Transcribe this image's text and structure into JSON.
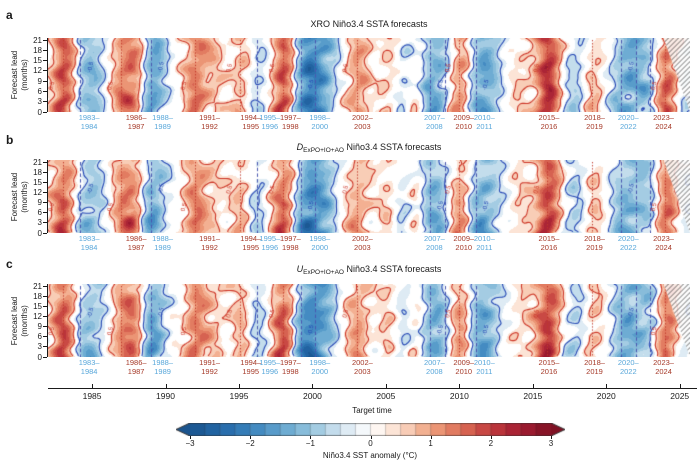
{
  "figure": {
    "background": "#ffffff",
    "x_axis_label": "Target time",
    "x_ticks": [
      1985,
      1990,
      1995,
      2000,
      2005,
      2010,
      2015,
      2020,
      2025
    ],
    "x_range": [
      1982.0,
      2025.7
    ],
    "y_axis_label_line1": "Forecast lead",
    "y_axis_label_line2": "(months)",
    "y_ticks": [
      0,
      3,
      6,
      9,
      12,
      15,
      18,
      21
    ],
    "y_range": [
      0,
      21.6
    ]
  },
  "chart_data": {
    "type": "heatmap",
    "description": "Three Hovmoller-style panels of Niño3.4 SSTA forecasts: shading is forecast Niño3.4 SST anomaly (°C) versus target time (x, 1982-2025) and forecast lead (y, 0-21 months). Solid contours at ±0.5 °C. Vertical dotted red lines mark El Niño peaks, dashed blue lines mark La Niña peaks. Hatching in the top-right marks forecasts beyond available observations.",
    "panels": [
      {
        "letter": "a",
        "title_prefix": "XRO",
        "title_sub": "",
        "title_rest": " Niño3.4 SSTA forecasts",
        "lead_damping": 0.22,
        "noise_seed": 0.3
      },
      {
        "letter": "b",
        "title_prefix": "D",
        "title_sub": "ExPO+IO+AO",
        "title_rest": " Niño3.4 SSTA forecasts",
        "lead_damping": 0.42,
        "noise_seed": 1.9
      },
      {
        "letter": "c",
        "title_prefix": "U",
        "title_sub": "ExPO+IO+AO",
        "title_rest": " Niño3.4 SSTA forecasts",
        "lead_damping": 0.32,
        "noise_seed": 3.7
      }
    ],
    "contour_levels": [
      -0.5,
      0.5
    ],
    "contour_label_positive": "0.5",
    "contour_label_negative": "-0.5",
    "events": [
      {
        "kind": "el_nino",
        "lines": [
          1983.0
        ],
        "label_top": "",
        "label_bottom": "",
        "label_x": 1983.0
      },
      {
        "kind": "la_nina",
        "lines": [
          1984.2
        ],
        "label_top": "1983–",
        "label_bottom": "1984",
        "label_x": 1984.8
      },
      {
        "kind": "el_nino",
        "lines": [
          1987.0
        ],
        "label_top": "1986–",
        "label_bottom": "1987",
        "label_x": 1988.0
      },
      {
        "kind": "la_nina",
        "lines": [
          1989.0
        ],
        "label_top": "1988–",
        "label_bottom": "1989",
        "label_x": 1989.8
      },
      {
        "kind": "el_nino",
        "lines": [
          1992.0
        ],
        "label_top": "1991–",
        "label_bottom": "1992",
        "label_x": 1993.0
      },
      {
        "kind": "el_nino",
        "lines": [
          1995.1
        ],
        "label_top": "1994–",
        "label_bottom": "1995",
        "label_x": 1995.8
      },
      {
        "kind": "la_nina",
        "lines": [
          1996.2
        ],
        "label_top": "1995–",
        "label_bottom": "1996",
        "label_x": 1997.1
      },
      {
        "kind": "el_nino",
        "lines": [
          1998.0
        ],
        "label_top": "1997–",
        "label_bottom": "1998",
        "label_x": 1998.5
      },
      {
        "kind": "la_nina",
        "lines": [
          1999.2,
          2000.2
        ],
        "label_top": "1998–",
        "label_bottom": "2000",
        "label_x": 2000.5
      },
      {
        "kind": "el_nino",
        "lines": [
          2003.0
        ],
        "label_top": "2002–",
        "label_bottom": "2003",
        "label_x": 2003.4
      },
      {
        "kind": "la_nina",
        "lines": [
          2008.0,
          2009.0
        ],
        "label_top": "2007–",
        "label_bottom": "2008",
        "label_x": 2008.3
      },
      {
        "kind": "el_nino",
        "lines": [
          2010.0
        ],
        "label_top": "2009–",
        "label_bottom": "2010",
        "label_x": 2010.3
      },
      {
        "kind": "la_nina",
        "lines": [
          2011.1
        ],
        "label_top": "2010–",
        "label_bottom": "2011",
        "label_x": 2011.7
      },
      {
        "kind": "el_nino",
        "lines": [
          2016.0
        ],
        "label_top": "2015–",
        "label_bottom": "2016",
        "label_x": 2016.1
      },
      {
        "kind": "el_nino",
        "lines": [
          2019.0
        ],
        "label_top": "2018–",
        "label_bottom": "2019",
        "label_x": 2019.2
      },
      {
        "kind": "la_nina",
        "lines": [
          2021.0,
          2022.0,
          2023.0
        ],
        "label_top": "2020–",
        "label_bottom": "2022",
        "label_x": 2021.5
      },
      {
        "kind": "el_nino",
        "lines": [
          2024.0
        ],
        "label_top": "2023–",
        "label_bottom": "2024",
        "label_x": 2023.9
      }
    ],
    "approx_anomaly_peaks": [
      [
        1983.0,
        2.2,
        0.5
      ],
      [
        1984.4,
        -1.0,
        0.6
      ],
      [
        1985.3,
        -0.6,
        0.5
      ],
      [
        1987.1,
        1.5,
        0.55
      ],
      [
        1988.0,
        1.1,
        0.4
      ],
      [
        1989.0,
        -1.8,
        0.55
      ],
      [
        1992.0,
        1.6,
        0.5
      ],
      [
        1993.3,
        0.6,
        0.4
      ],
      [
        1995.1,
        1.0,
        0.45
      ],
      [
        1996.1,
        -0.8,
        0.5
      ],
      [
        1998.0,
        2.3,
        0.5
      ],
      [
        1999.2,
        -1.5,
        0.6
      ],
      [
        2000.2,
        -1.6,
        0.6
      ],
      [
        2001.1,
        -0.6,
        0.4
      ],
      [
        2003.0,
        1.2,
        0.5
      ],
      [
        2005.0,
        0.6,
        0.4
      ],
      [
        2006.2,
        -0.6,
        0.4
      ],
      [
        2007.0,
        0.7,
        0.4
      ],
      [
        2008.0,
        -1.5,
        0.55
      ],
      [
        2009.0,
        -0.6,
        0.4
      ],
      [
        2010.0,
        1.5,
        0.5
      ],
      [
        2011.1,
        -1.4,
        0.5
      ],
      [
        2012.1,
        -1.0,
        0.5
      ],
      [
        2014.1,
        0.5,
        0.45
      ],
      [
        2016.0,
        2.5,
        0.55
      ],
      [
        2017.0,
        -0.5,
        0.4
      ],
      [
        2018.0,
        -0.8,
        0.45
      ],
      [
        2019.0,
        0.8,
        0.45
      ],
      [
        2021.0,
        -1.2,
        0.5
      ],
      [
        2022.0,
        -1.0,
        0.5
      ],
      [
        2023.0,
        -0.9,
        0.45
      ],
      [
        2024.0,
        1.9,
        0.5
      ],
      [
        2025.3,
        -0.5,
        0.4
      ]
    ],
    "hatch_start_year_at_top": 2023.9,
    "colors": {
      "el_nino_label": "#a63a29",
      "la_nina_label": "#58a7da",
      "el_nino_line": "#c0392b",
      "la_nina_line": "#4a57b0",
      "contour_positive": "#cd3526",
      "contour_negative": "#2547b5",
      "axis": "#1a1a1a"
    }
  },
  "colorbar": {
    "label": "Niño3.4 SST anomaly (°C)",
    "ticks": [
      -3,
      -2,
      -1,
      0,
      1,
      2,
      3
    ],
    "range": [
      -3,
      3
    ],
    "segment_step": 0.25,
    "stops": [
      {
        "v": -3.0,
        "c": "#1a548e"
      },
      {
        "v": -2.5,
        "c": "#2468a8"
      },
      {
        "v": -2.0,
        "c": "#3a83bd"
      },
      {
        "v": -1.5,
        "c": "#62a4cf"
      },
      {
        "v": -1.0,
        "c": "#94c4de"
      },
      {
        "v": -0.5,
        "c": "#d3e5f1"
      },
      {
        "v": -0.25,
        "c": "#e9f1f7"
      },
      {
        "v": 0.0,
        "c": "#ffffff"
      },
      {
        "v": 0.25,
        "c": "#fdeee4"
      },
      {
        "v": 0.5,
        "c": "#fbdbc9"
      },
      {
        "v": 1.0,
        "c": "#f0a27f"
      },
      {
        "v": 1.5,
        "c": "#dd6f57"
      },
      {
        "v": 2.0,
        "c": "#c23c3e"
      },
      {
        "v": 2.5,
        "c": "#a31d33"
      },
      {
        "v": 3.0,
        "c": "#7f1123"
      }
    ]
  }
}
